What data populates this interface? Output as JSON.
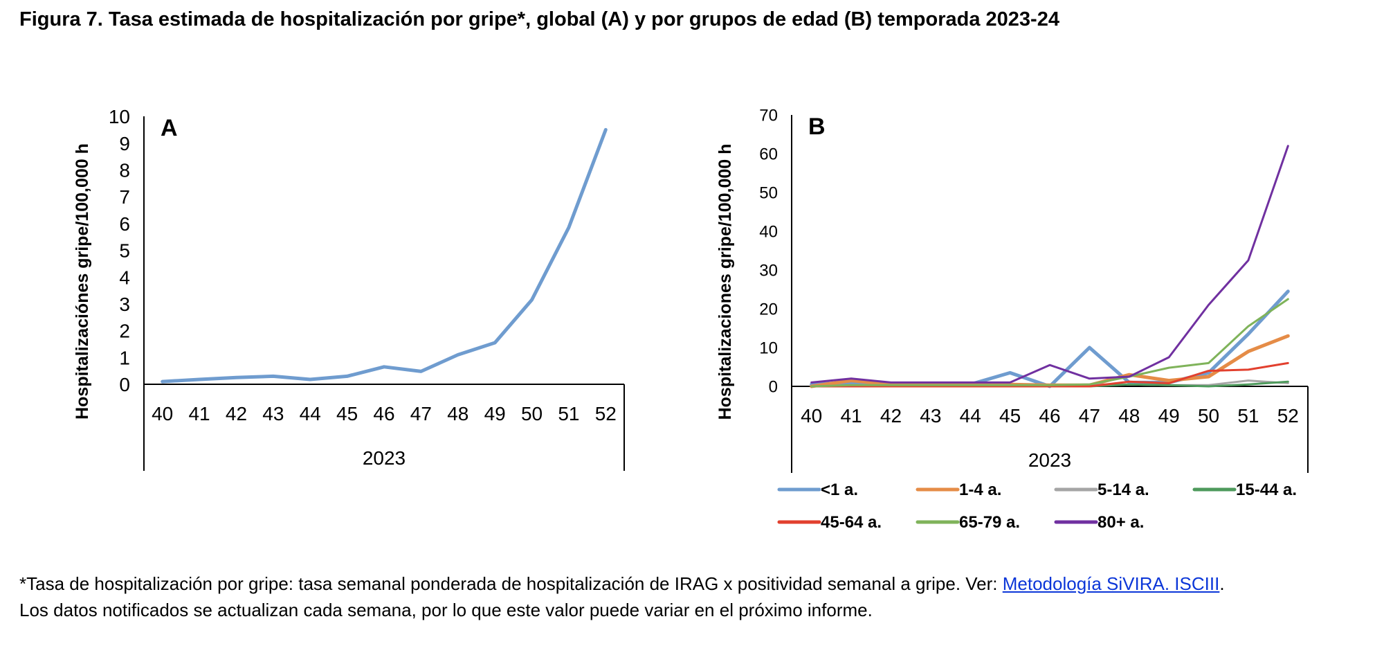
{
  "title": "Figura 7. Tasa estimada de hospitalización por gripe*, global (A) y por grupos de edad (B) temporada 2023-24",
  "chart_data": [
    {
      "type": "line",
      "panel_label": "A",
      "ylabel": "Hospitalizaciónes gripe/100,000 h",
      "x": [
        "40",
        "41",
        "42",
        "43",
        "44",
        "45",
        "46",
        "47",
        "48",
        "49",
        "50",
        "51",
        "52"
      ],
      "year_label": "2023",
      "ylim": [
        0,
        10
      ],
      "yticks": [
        0,
        1,
        2,
        3,
        4,
        5,
        6,
        7,
        8,
        9,
        10
      ],
      "grid": false,
      "series": [
        {
          "color": "#6f9ccf",
          "values": [
            0.1,
            0.18,
            0.25,
            0.3,
            0.18,
            0.3,
            0.65,
            0.48,
            1.1,
            1.55,
            3.15,
            5.85,
            9.5
          ]
        }
      ]
    },
    {
      "type": "line",
      "panel_label": "B",
      "ylabel": "Hospitalizaciones gripe/100,000 h",
      "x": [
        "40",
        "41",
        "42",
        "43",
        "44",
        "45",
        "46",
        "47",
        "48",
        "49",
        "50",
        "51",
        "52"
      ],
      "year_label": "2023",
      "ylim": [
        0,
        70
      ],
      "yticks": [
        0,
        10,
        20,
        30,
        40,
        50,
        60,
        70
      ],
      "grid": false,
      "legend_position": "bottom",
      "series": [
        {
          "name": "<1 a.",
          "color": "#6f9ccf",
          "width": 5,
          "values": [
            0.5,
            1,
            0.5,
            0.5,
            0.5,
            3.5,
            0,
            10,
            1,
            1,
            3.5,
            13.5,
            24.5
          ]
        },
        {
          "name": "1-4 a.",
          "color": "#e58c47",
          "width": 5,
          "values": [
            0,
            1.5,
            0.5,
            0.5,
            0.5,
            0.5,
            0.3,
            0.3,
            3,
            1.5,
            2.5,
            9,
            13
          ]
        },
        {
          "name": "5-14 a.",
          "color": "#a5a5a5",
          "width": 3,
          "values": [
            0,
            0.3,
            0.3,
            0.3,
            0.3,
            0.3,
            0.3,
            0.5,
            0.5,
            0.3,
            0.3,
            1.5,
            0.8
          ]
        },
        {
          "name": "15-44 a.",
          "color": "#4e9a5c",
          "width": 3,
          "values": [
            0,
            0,
            0,
            0,
            0,
            0,
            0,
            0,
            0.5,
            0.3,
            0,
            0.5,
            1.2
          ]
        },
        {
          "name": "45-64 a.",
          "color": "#e2402e",
          "width": 3,
          "values": [
            0,
            0,
            0,
            0,
            0,
            0,
            0,
            0,
            1.2,
            0.8,
            4,
            4.3,
            6
          ]
        },
        {
          "name": "65-79 a.",
          "color": "#7fb35a",
          "width": 3,
          "values": [
            0,
            0.3,
            0.3,
            0.3,
            0.3,
            0.3,
            0.3,
            0.5,
            2.5,
            4.8,
            6,
            15.5,
            22.5
          ]
        },
        {
          "name": "80+ a.",
          "color": "#7030a0",
          "width": 3,
          "values": [
            1,
            2,
            1,
            1,
            1,
            1,
            5.5,
            2,
            2.5,
            7.5,
            21,
            32.5,
            62
          ]
        }
      ]
    }
  ],
  "footnote": {
    "line1_text": "*Tasa de hospitalización por gripe: tasa semanal ponderada de hospitalización de IRAG x positividad semanal a gripe. Ver: ",
    "line1_link": "Metodología SiVIRA. ISCIII",
    "line1_end": ".",
    "line2": "Los datos notificados se actualizan cada semana, por lo que este valor puede variar en el próximo informe."
  }
}
